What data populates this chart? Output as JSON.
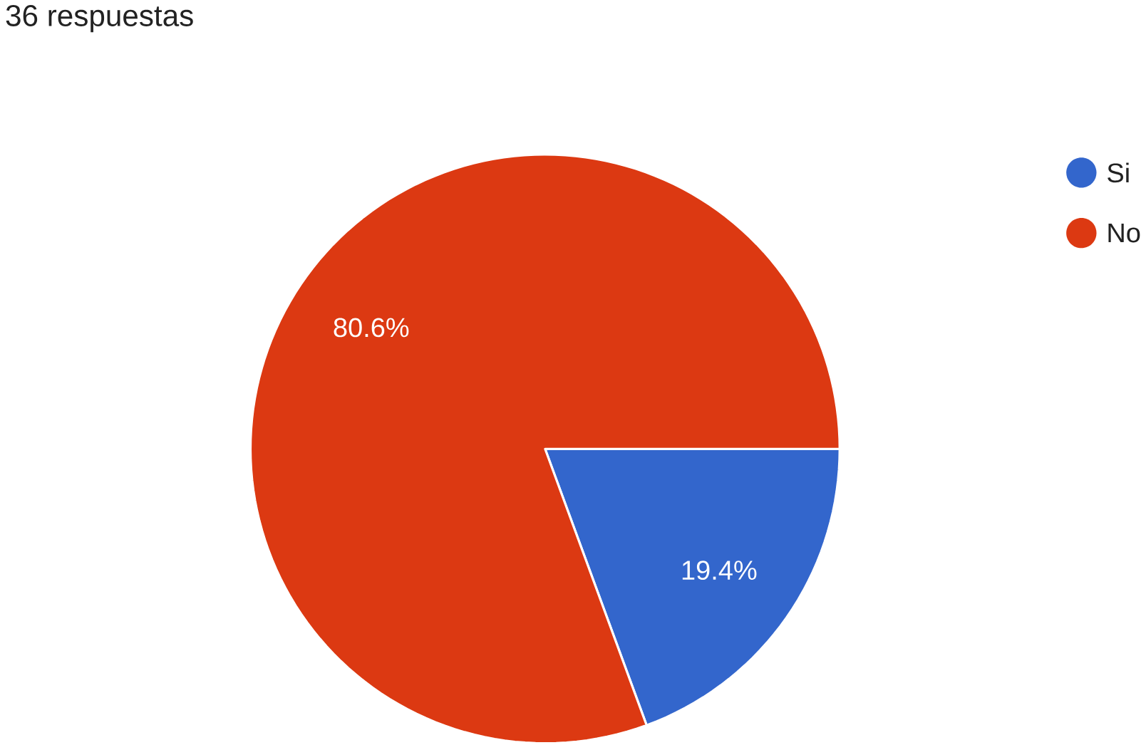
{
  "chart_data": {
    "type": "pie",
    "title": "36 respuestas",
    "categories": [
      "Si",
      "No"
    ],
    "values": [
      19.4,
      80.6
    ],
    "colors": [
      "#3366cc",
      "#dc3912"
    ],
    "value_labels": [
      "19.4%",
      "80.6%"
    ],
    "legend": "right"
  }
}
